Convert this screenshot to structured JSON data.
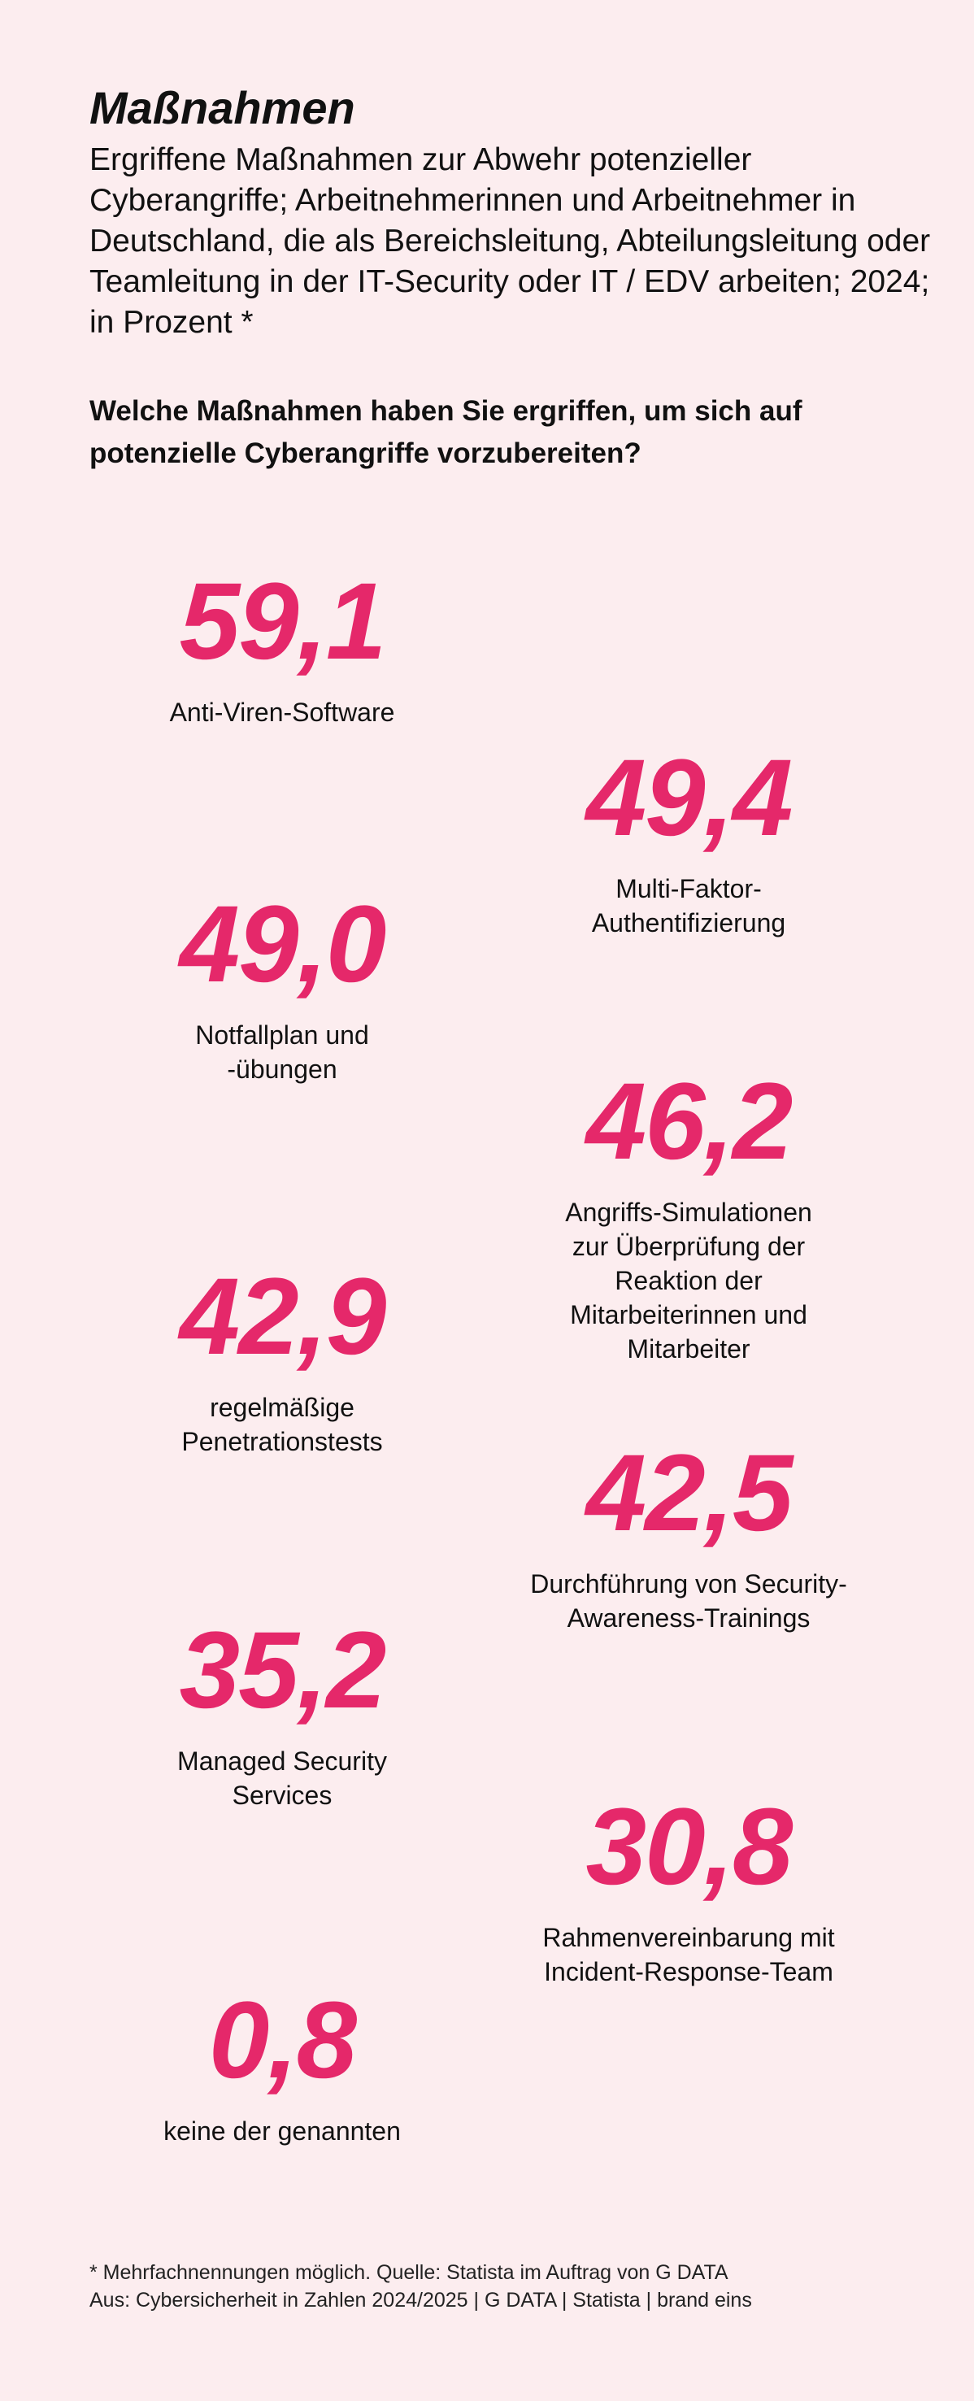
{
  "header": {
    "title": "Maßnahmen",
    "subtitle": "Ergriffene Maßnahmen zur Abwehr potenzieller Cyberangriffe; Arbeitnehmerinnen und Arbeitnehmer in Deutschland, die als Bereichsleitung, Abteilungsleitung oder Teamleitung in der IT-Security oder IT / EDV arbeiten; 2024; in Prozent *",
    "question": "Welche Maßnahmen haben Sie ergriffen, um sich auf potenzielle Cyberangriffe vorzubereiten?"
  },
  "colors": {
    "background": "#fcedef",
    "accent": "#e5286a",
    "text": "#111111"
  },
  "chart_data": {
    "type": "table",
    "title": "Maßnahmen",
    "unit": "in Prozent",
    "items": [
      {
        "value": "59,1",
        "label": "Anti-Viren-Software"
      },
      {
        "value": "49,4",
        "label": "Multi-Faktor-\nAuthentifizierung"
      },
      {
        "value": "49,0",
        "label": "Notfallplan und\n-übungen"
      },
      {
        "value": "46,2",
        "label": "Angriffs-Simulationen\nzur Überprüfung der\nReaktion der\nMitarbeiterinnen und\nMitarbeiter"
      },
      {
        "value": "42,9",
        "label": "regelmäßige\nPenetrationstests"
      },
      {
        "value": "42,5",
        "label": "Durchführung von Security-\nAwareness-Trainings"
      },
      {
        "value": "35,2",
        "label": "Managed Security\nServices"
      },
      {
        "value": "30,8",
        "label": "Rahmenvereinbarung mit\nIncident-Response-Team"
      },
      {
        "value": "0,8",
        "label": "keine der genannten"
      }
    ]
  },
  "footer": {
    "note": "* Mehrfachnennungen möglich. Quelle: Statista im Auftrag von G DATA",
    "source": "Aus: Cybersicherheit in Zahlen 2024/2025 | G DATA | Statista | brand eins"
  }
}
